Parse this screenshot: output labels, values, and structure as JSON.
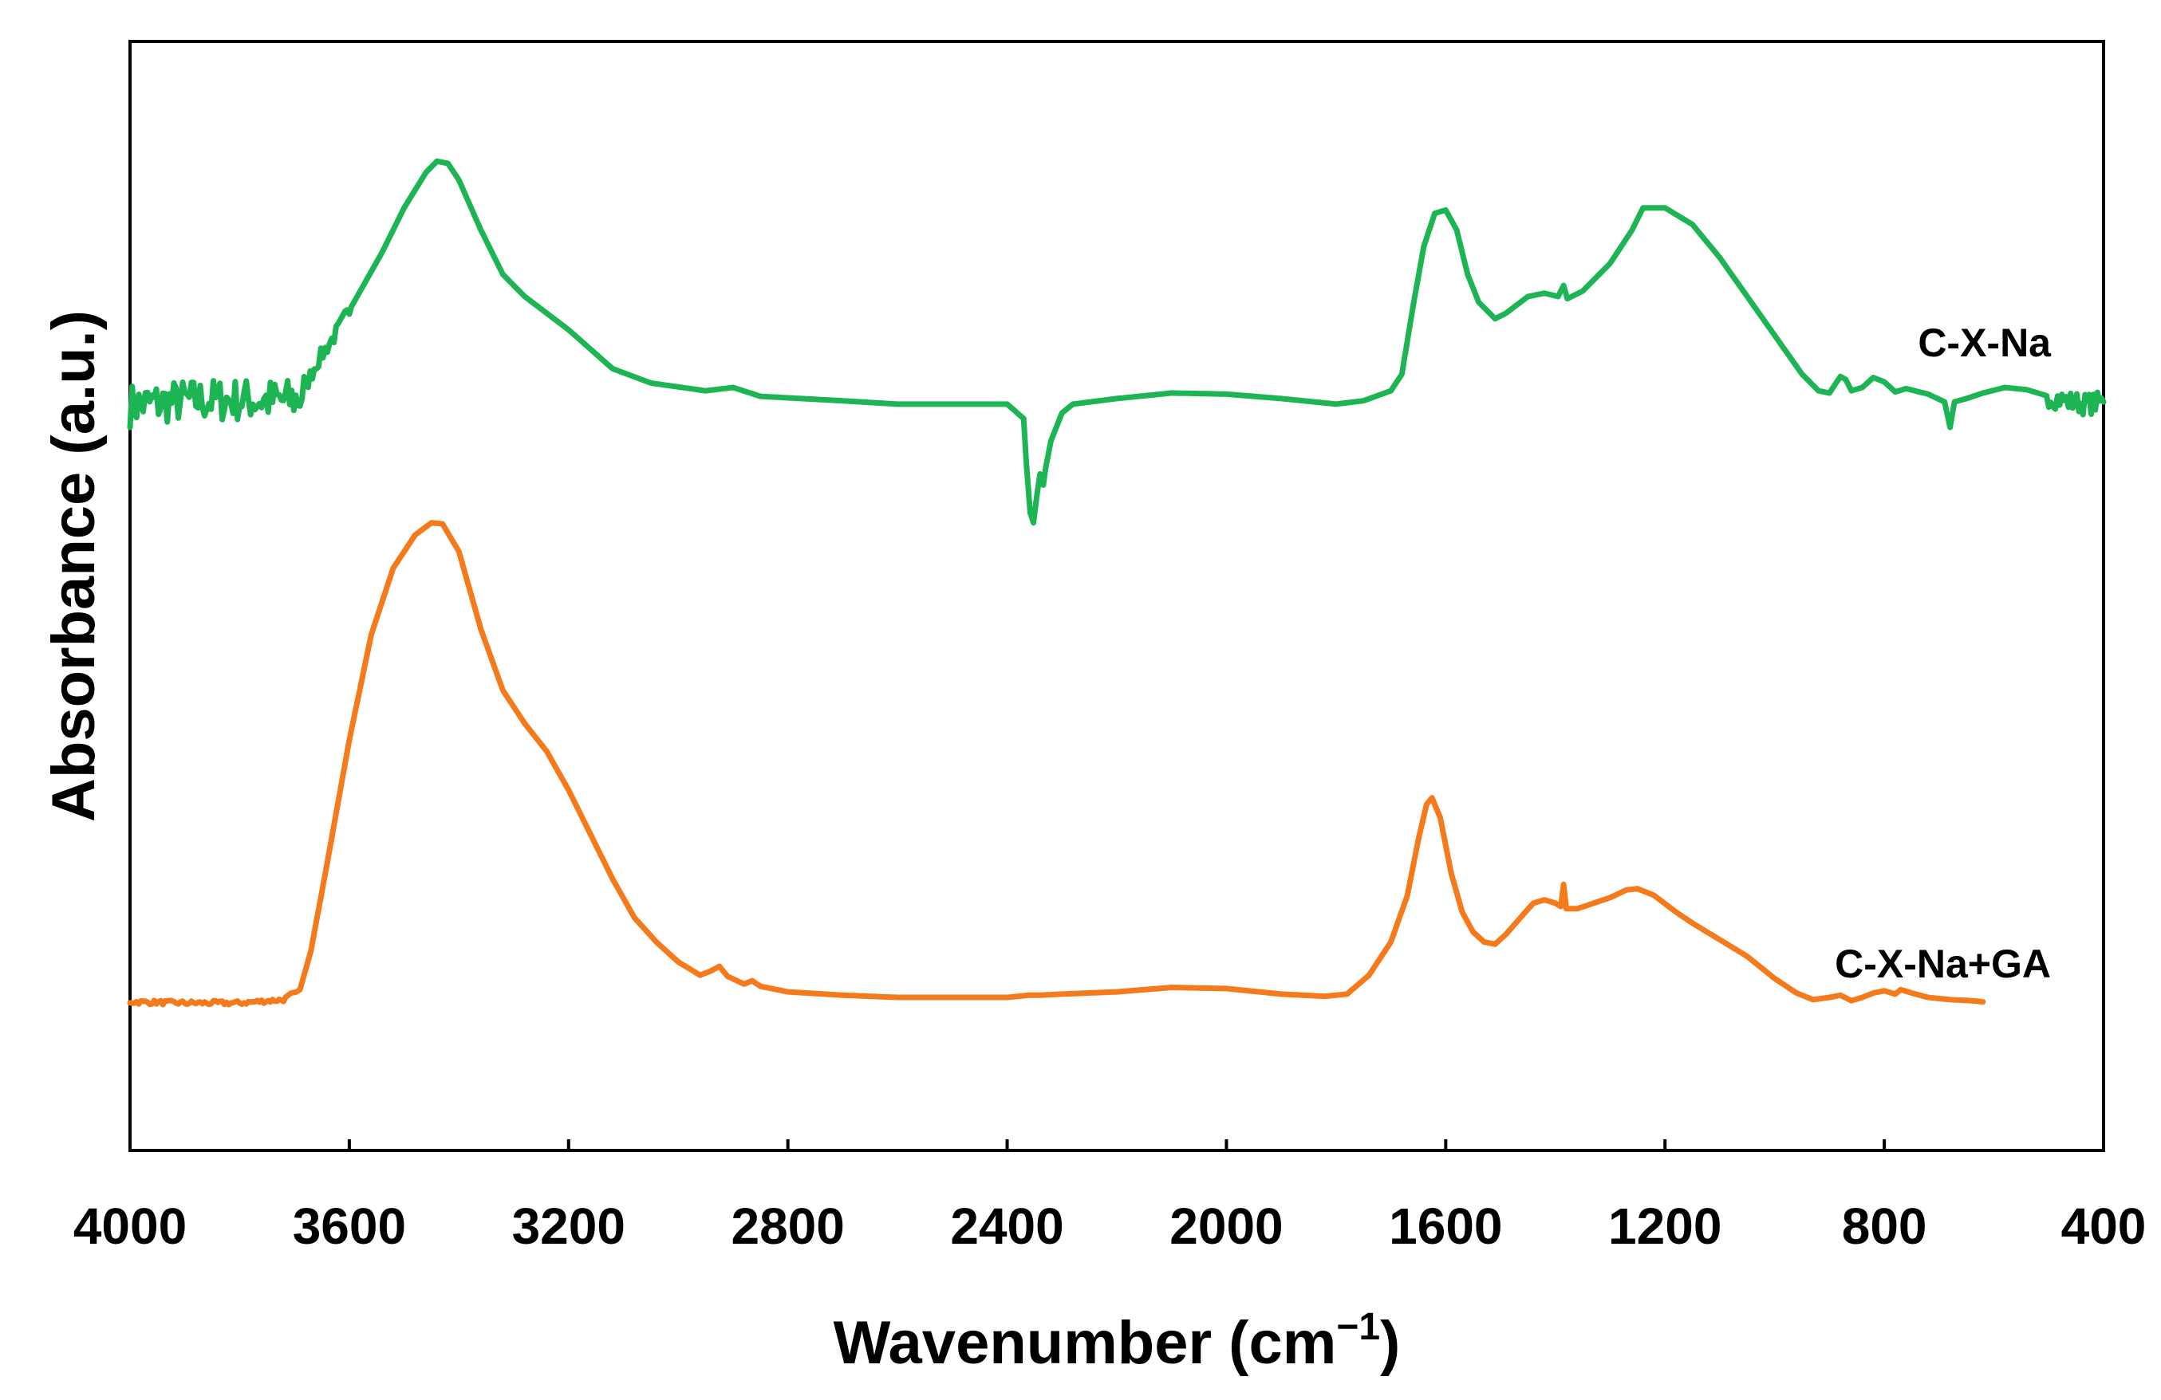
{
  "chart_data": {
    "type": "line",
    "title": "",
    "xlabel": "Wavenumber (cm",
    "xlabel_superscript": "−1",
    "xlabel_close": ")",
    "ylabel": "Absorbance (a.u.)",
    "xlim": [
      4000,
      400
    ],
    "ylim": [
      0,
      100
    ],
    "grid": false,
    "legend": "none",
    "x_ticks": [
      4000,
      3600,
      3200,
      2800,
      2400,
      2000,
      1600,
      1200,
      800,
      400
    ],
    "x_tick_labels": [
      "4000",
      "3600",
      "3200",
      "2800",
      "2400",
      "2000",
      "1600",
      "1200",
      "800",
      "400"
    ],
    "series": [
      {
        "name": "C-X-Na",
        "color": "#1db554",
        "noise": [
          [
            4000,
            3680,
            4
          ],
          [
            3680,
            3600,
            1.5
          ],
          [
            500,
            400,
            2
          ]
        ],
        "points": [
          [
            4000,
            67.2
          ],
          [
            3900,
            67.6
          ],
          [
            3800,
            67.7
          ],
          [
            3720,
            67.6
          ],
          [
            3690,
            67.8
          ],
          [
            3660,
            71.0
          ],
          [
            3620,
            74.0
          ],
          [
            3580,
            77.5
          ],
          [
            3540,
            81.0
          ],
          [
            3500,
            85.0
          ],
          [
            3460,
            88.2
          ],
          [
            3440,
            89.2
          ],
          [
            3420,
            89.0
          ],
          [
            3400,
            87.5
          ],
          [
            3360,
            83.0
          ],
          [
            3320,
            79.0
          ],
          [
            3280,
            77.0
          ],
          [
            3200,
            74.0
          ],
          [
            3120,
            70.5
          ],
          [
            3050,
            69.2
          ],
          [
            2950,
            68.5
          ],
          [
            2900,
            68.8
          ],
          [
            2850,
            68.0
          ],
          [
            2700,
            67.6
          ],
          [
            2600,
            67.3
          ],
          [
            2400,
            67.3
          ],
          [
            2370,
            66.0
          ],
          [
            2365,
            62.0
          ],
          [
            2358,
            57.5
          ],
          [
            2352,
            56.6
          ],
          [
            2346,
            59.0
          ],
          [
            2340,
            61.0
          ],
          [
            2334,
            60.0
          ],
          [
            2330,
            61.5
          ],
          [
            2320,
            64.0
          ],
          [
            2300,
            66.5
          ],
          [
            2280,
            67.3
          ],
          [
            2200,
            67.8
          ],
          [
            2100,
            68.3
          ],
          [
            2000,
            68.2
          ],
          [
            1900,
            67.8
          ],
          [
            1800,
            67.3
          ],
          [
            1750,
            67.6
          ],
          [
            1700,
            68.5
          ],
          [
            1680,
            70.0
          ],
          [
            1660,
            76.0
          ],
          [
            1640,
            81.5
          ],
          [
            1620,
            84.5
          ],
          [
            1600,
            84.8
          ],
          [
            1580,
            83.0
          ],
          [
            1560,
            79.0
          ],
          [
            1540,
            76.5
          ],
          [
            1510,
            75.0
          ],
          [
            1490,
            75.5
          ],
          [
            1450,
            77.0
          ],
          [
            1420,
            77.3
          ],
          [
            1395,
            77.0
          ],
          [
            1385,
            78.0
          ],
          [
            1378,
            76.8
          ],
          [
            1350,
            77.5
          ],
          [
            1300,
            80.0
          ],
          [
            1260,
            83.0
          ],
          [
            1240,
            85.0
          ],
          [
            1200,
            85.0
          ],
          [
            1150,
            83.5
          ],
          [
            1100,
            80.5
          ],
          [
            1050,
            77.0
          ],
          [
            1000,
            73.5
          ],
          [
            950,
            70.0
          ],
          [
            920,
            68.5
          ],
          [
            900,
            68.3
          ],
          [
            880,
            69.8
          ],
          [
            870,
            69.5
          ],
          [
            860,
            68.5
          ],
          [
            840,
            68.8
          ],
          [
            820,
            69.7
          ],
          [
            800,
            69.3
          ],
          [
            780,
            68.4
          ],
          [
            760,
            68.7
          ],
          [
            720,
            68.2
          ],
          [
            690,
            67.5
          ],
          [
            680,
            65.2
          ],
          [
            672,
            67.5
          ],
          [
            650,
            67.8
          ],
          [
            620,
            68.3
          ],
          [
            580,
            68.8
          ],
          [
            540,
            68.6
          ],
          [
            500,
            68.0
          ],
          [
            460,
            67.5
          ],
          [
            430,
            67.3
          ],
          [
            400,
            67.5
          ]
        ]
      },
      {
        "name": "C-X-Na+GA",
        "color": "#f47a1c",
        "noise": [
          [
            4000,
            3700,
            0.4
          ]
        ],
        "points": [
          [
            4000,
            13.4
          ],
          [
            3900,
            13.3
          ],
          [
            3800,
            13.3
          ],
          [
            3720,
            13.6
          ],
          [
            3690,
            14.5
          ],
          [
            3670,
            18.0
          ],
          [
            3640,
            26.0
          ],
          [
            3600,
            37.0
          ],
          [
            3560,
            46.5
          ],
          [
            3520,
            52.5
          ],
          [
            3480,
            55.5
          ],
          [
            3450,
            56.6
          ],
          [
            3430,
            56.5
          ],
          [
            3400,
            54.0
          ],
          [
            3360,
            47.0
          ],
          [
            3320,
            41.5
          ],
          [
            3280,
            38.5
          ],
          [
            3240,
            36.0
          ],
          [
            3200,
            32.5
          ],
          [
            3160,
            28.5
          ],
          [
            3120,
            24.5
          ],
          [
            3080,
            21.0
          ],
          [
            3040,
            18.8
          ],
          [
            3000,
            17.0
          ],
          [
            2960,
            15.8
          ],
          [
            2940,
            16.2
          ],
          [
            2925,
            16.6
          ],
          [
            2910,
            15.7
          ],
          [
            2880,
            15.0
          ],
          [
            2865,
            15.3
          ],
          [
            2850,
            14.8
          ],
          [
            2800,
            14.3
          ],
          [
            2700,
            14.0
          ],
          [
            2600,
            13.8
          ],
          [
            2500,
            13.8
          ],
          [
            2400,
            13.8
          ],
          [
            2360,
            14.0
          ],
          [
            2340,
            14.0
          ],
          [
            2300,
            14.1
          ],
          [
            2200,
            14.3
          ],
          [
            2100,
            14.7
          ],
          [
            2000,
            14.6
          ],
          [
            1900,
            14.1
          ],
          [
            1820,
            13.9
          ],
          [
            1780,
            14.1
          ],
          [
            1740,
            15.8
          ],
          [
            1700,
            18.8
          ],
          [
            1670,
            23.0
          ],
          [
            1650,
            28.0
          ],
          [
            1635,
            31.2
          ],
          [
            1625,
            31.8
          ],
          [
            1610,
            30.0
          ],
          [
            1590,
            25.0
          ],
          [
            1570,
            21.5
          ],
          [
            1550,
            19.7
          ],
          [
            1530,
            18.8
          ],
          [
            1510,
            18.6
          ],
          [
            1490,
            19.5
          ],
          [
            1460,
            21.2
          ],
          [
            1440,
            22.3
          ],
          [
            1420,
            22.6
          ],
          [
            1400,
            22.3
          ],
          [
            1390,
            22.0
          ],
          [
            1385,
            24.0
          ],
          [
            1380,
            21.8
          ],
          [
            1360,
            21.8
          ],
          [
            1330,
            22.3
          ],
          [
            1300,
            22.8
          ],
          [
            1270,
            23.5
          ],
          [
            1250,
            23.6
          ],
          [
            1220,
            23.0
          ],
          [
            1180,
            21.5
          ],
          [
            1150,
            20.5
          ],
          [
            1100,
            19.0
          ],
          [
            1050,
            17.5
          ],
          [
            1000,
            15.5
          ],
          [
            960,
            14.2
          ],
          [
            930,
            13.6
          ],
          [
            900,
            13.8
          ],
          [
            880,
            14.0
          ],
          [
            860,
            13.5
          ],
          [
            840,
            13.8
          ],
          [
            820,
            14.2
          ],
          [
            800,
            14.4
          ],
          [
            780,
            14.1
          ],
          [
            770,
            14.5
          ],
          [
            750,
            14.2
          ],
          [
            720,
            13.8
          ],
          [
            680,
            13.6
          ],
          [
            640,
            13.5
          ],
          [
            620,
            13.4
          ]
        ]
      }
    ]
  }
}
